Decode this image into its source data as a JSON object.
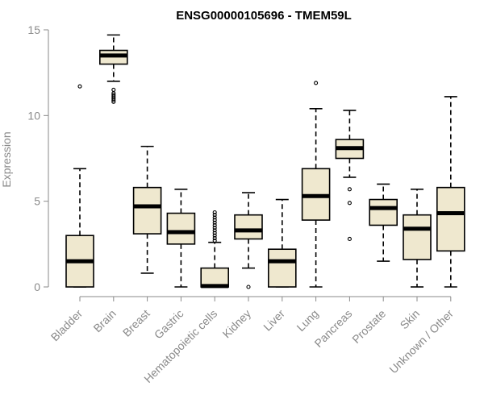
{
  "chart_data": {
    "type": "boxplot",
    "title": "ENSG00000105696 - TMEM59L",
    "xlabel": "",
    "ylabel": "Expression",
    "ylim": [
      0,
      15
    ],
    "yticks": [
      0,
      5,
      10,
      15
    ],
    "grid": false,
    "box_color": "#efe8cf",
    "categories": [
      "Bladder",
      "Brain",
      "Breast",
      "Gastric",
      "Hematopoietic cells",
      "Kidney",
      "Liver",
      "Lung",
      "Pancreas",
      "Prostate",
      "Skin",
      "Unknown / Other"
    ],
    "boxes": [
      {
        "min": 0.0,
        "q1": 0.0,
        "median": 1.5,
        "q3": 3.0,
        "max": 6.9,
        "outliers": [
          11.7
        ]
      },
      {
        "min": 12.0,
        "q1": 13.0,
        "median": 13.5,
        "q3": 13.8,
        "max": 14.7,
        "outliers": [
          11.5,
          11.3,
          11.2,
          11.1,
          11.0,
          10.9,
          10.8
        ]
      },
      {
        "min": 0.8,
        "q1": 3.1,
        "median": 4.7,
        "q3": 5.8,
        "max": 8.2,
        "outliers": []
      },
      {
        "min": 0.0,
        "q1": 2.5,
        "median": 3.2,
        "q3": 4.3,
        "max": 5.7,
        "outliers": []
      },
      {
        "min": 0.0,
        "q1": 0.0,
        "median": 0.05,
        "q3": 1.1,
        "max": 2.6,
        "outliers": [
          2.7,
          2.85,
          3.0,
          3.15,
          3.3,
          3.45,
          3.6,
          3.75,
          3.9,
          4.05,
          4.2,
          4.35
        ]
      },
      {
        "min": 1.1,
        "q1": 2.8,
        "median": 3.3,
        "q3": 4.2,
        "max": 5.5,
        "outliers": [
          0.0
        ]
      },
      {
        "min": 0.0,
        "q1": 0.0,
        "median": 1.5,
        "q3": 2.2,
        "max": 5.1,
        "outliers": []
      },
      {
        "min": 0.0,
        "q1": 3.9,
        "median": 5.3,
        "q3": 6.9,
        "max": 10.4,
        "outliers": [
          11.9
        ]
      },
      {
        "min": 6.4,
        "q1": 7.5,
        "median": 8.1,
        "q3": 8.6,
        "max": 10.3,
        "outliers": [
          5.7,
          4.9,
          2.8
        ]
      },
      {
        "min": 1.5,
        "q1": 3.6,
        "median": 4.6,
        "q3": 5.1,
        "max": 6.0,
        "outliers": []
      },
      {
        "min": 0.0,
        "q1": 1.6,
        "median": 3.4,
        "q3": 4.2,
        "max": 5.7,
        "outliers": []
      },
      {
        "min": 0.0,
        "q1": 2.1,
        "median": 4.3,
        "q3": 5.8,
        "max": 11.1,
        "outliers": []
      }
    ]
  }
}
